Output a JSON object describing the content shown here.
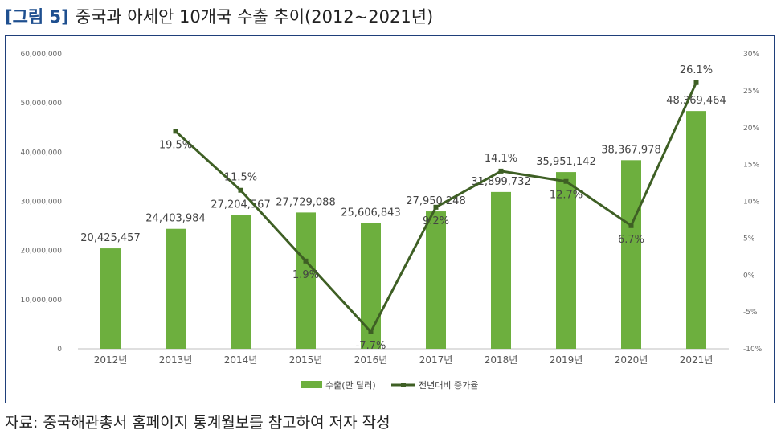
{
  "title": {
    "tag": "[그림 5]",
    "text": "중국과 아세안 10개국 수출 추이(2012~2021년)"
  },
  "source": "자료: 중국해관총서 홈페이지 통계월보를 참고하여 저자 작성",
  "colors": {
    "bar": "#6daf3e",
    "line": "#3e5f24",
    "frame": "#1f3f7a",
    "title_tag": "#1e4f8f"
  },
  "chart_data": {
    "type": "bar",
    "categories": [
      "2012년",
      "2013년",
      "2014년",
      "2015년",
      "2016년",
      "2017년",
      "2018년",
      "2019년",
      "2020년",
      "2021년"
    ],
    "series": [
      {
        "name": "수출(만 달러)",
        "type": "bar",
        "axis": "left",
        "values": [
          20425457,
          24403984,
          27204567,
          27729088,
          25606843,
          27950248,
          31899732,
          35951142,
          38367978,
          48369464
        ],
        "labels": [
          "20,425,457",
          "24,403,984",
          "27,204,567",
          "27,729,088",
          "25,606,843",
          "27,950,248",
          "31,899,732",
          "35,951,142",
          "38,367,978",
          "48,369,464"
        ]
      },
      {
        "name": "전년대비 증가율",
        "type": "line",
        "axis": "right",
        "values": [
          null,
          19.5,
          11.5,
          1.9,
          -7.7,
          9.2,
          14.1,
          12.7,
          6.7,
          26.1
        ],
        "labels": [
          "",
          "19.5%",
          "11.5%",
          "1.9%",
          "-7.7%",
          "9.2%",
          "14.1%",
          "12.7%",
          "6.7%",
          "26.1%"
        ]
      }
    ],
    "y_left": {
      "min": 0,
      "max": 60000000,
      "ticks": [
        0,
        10000000,
        20000000,
        30000000,
        40000000,
        50000000,
        60000000
      ],
      "tick_labels": [
        "0",
        "10,000,000",
        "20,000,000",
        "30,000,000",
        "40,000,000",
        "50,000,000",
        "60,000,000"
      ]
    },
    "y_right": {
      "min": -10,
      "max": 30,
      "ticks": [
        -10,
        -5,
        0,
        5,
        10,
        15,
        20,
        25,
        30
      ],
      "tick_labels": [
        "-10%",
        "-5%",
        "0%",
        "5%",
        "10%",
        "15%",
        "20%",
        "25%",
        "30%"
      ]
    },
    "legend": {
      "position": "bottom"
    },
    "grid": false
  }
}
